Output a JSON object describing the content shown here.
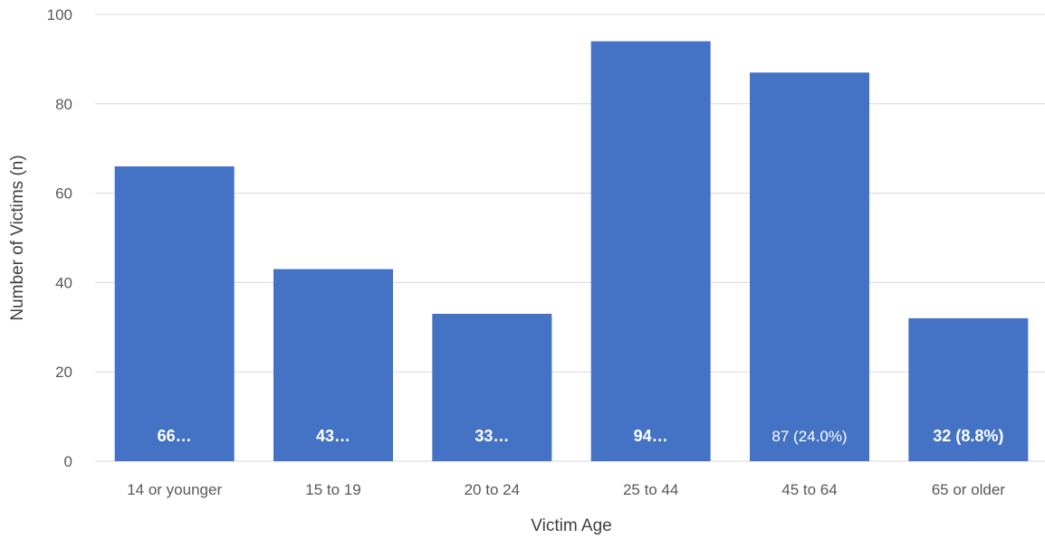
{
  "chart_data": {
    "type": "bar",
    "title": "",
    "xlabel": "Victim Age",
    "ylabel": "Number of Victims (n)",
    "ylim": [
      0,
      100
    ],
    "yticks": [
      0,
      20,
      40,
      60,
      80,
      100
    ],
    "categories": [
      "14 or younger",
      "15 to 19",
      "20 to 24",
      "25 to 44",
      "45 to 64",
      "65 or older"
    ],
    "values": [
      66,
      43,
      33,
      94,
      87,
      32
    ],
    "data_labels": [
      "66…",
      "43…",
      "33…",
      "94…",
      "87 (24.0%)",
      "32  (8.8%)"
    ],
    "data_label_bold": [
      true,
      true,
      true,
      true,
      false,
      true
    ],
    "grid": true,
    "legend": "none",
    "colors": {
      "bar": "#4472C4",
      "grid": "#D9D9D9",
      "label": "#FFFFFF"
    }
  }
}
